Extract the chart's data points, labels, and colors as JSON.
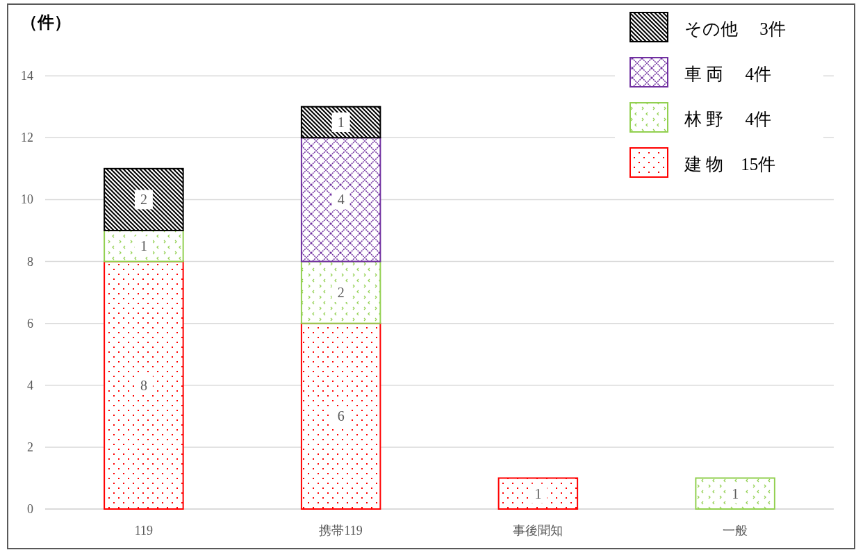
{
  "chart_data": {
    "type": "bar",
    "stacked": true,
    "ylabel": "（件）",
    "categories": [
      "119",
      "携帯119",
      "事後聞知",
      "一般"
    ],
    "series": [
      {
        "name": "建 物　15件",
        "color": "#ff0000",
        "values": [
          8,
          6,
          1,
          null
        ],
        "value_labels": [
          "8",
          "6",
          "1",
          null
        ]
      },
      {
        "name": "林 野　 4件",
        "color": "#92d050",
        "values": [
          1,
          2,
          null,
          1
        ],
        "value_labels": [
          "1",
          "2",
          null,
          "1"
        ]
      },
      {
        "name": "車 両　 4件",
        "color": "#7030a0",
        "values": [
          null,
          4,
          null,
          null
        ],
        "value_labels": [
          null,
          "4",
          null,
          null
        ]
      },
      {
        "name": "その他　 3件",
        "color": "#000000",
        "values": [
          2,
          1,
          null,
          null
        ],
        "value_labels": [
          "2",
          "1",
          null,
          null
        ]
      }
    ],
    "ylim": [
      0,
      16
    ],
    "yticks": [
      0,
      2,
      4,
      6,
      8,
      10,
      12,
      14
    ],
    "grid": "y",
    "legend": "top right"
  }
}
